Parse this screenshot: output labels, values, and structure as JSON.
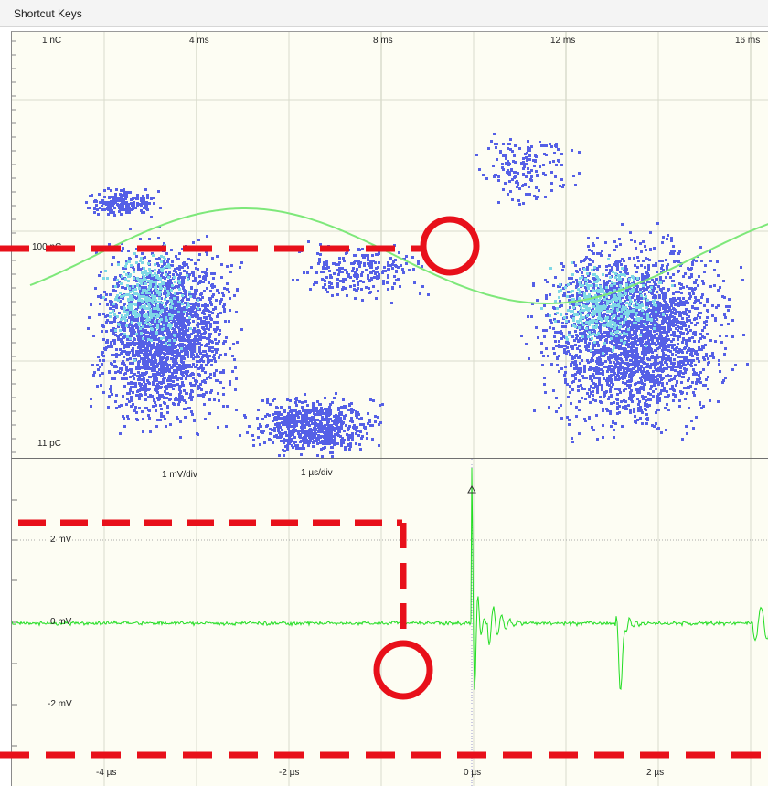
{
  "window": {
    "title": "Shortcut Keys"
  },
  "top_scope": {
    "time_ticks": [
      "4 ms",
      "8 ms",
      "12 ms",
      "16 ms"
    ],
    "charge_top_label": "1 nC",
    "charge_mid_label": "100 pC",
    "charge_bottom_label": "11 pC",
    "colors": {
      "persistence_low": "#5560e6",
      "persistence_high": "#7fd8e6",
      "sine": "#7ee87a",
      "grid": "#d9dccd"
    }
  },
  "bottom_scope": {
    "volts_per_div": "1 mV/div",
    "time_per_div": "1 µs/div",
    "y_labels": [
      "2 mV",
      "0 mV",
      "-2 mV"
    ],
    "x_labels": [
      "-4 µs",
      "-2 µs",
      "0 µs",
      "2 µs"
    ],
    "colors": {
      "trace": "#22dd22",
      "grid": "#d9dccd"
    }
  },
  "annotations": {
    "color": "#e8101a"
  }
}
